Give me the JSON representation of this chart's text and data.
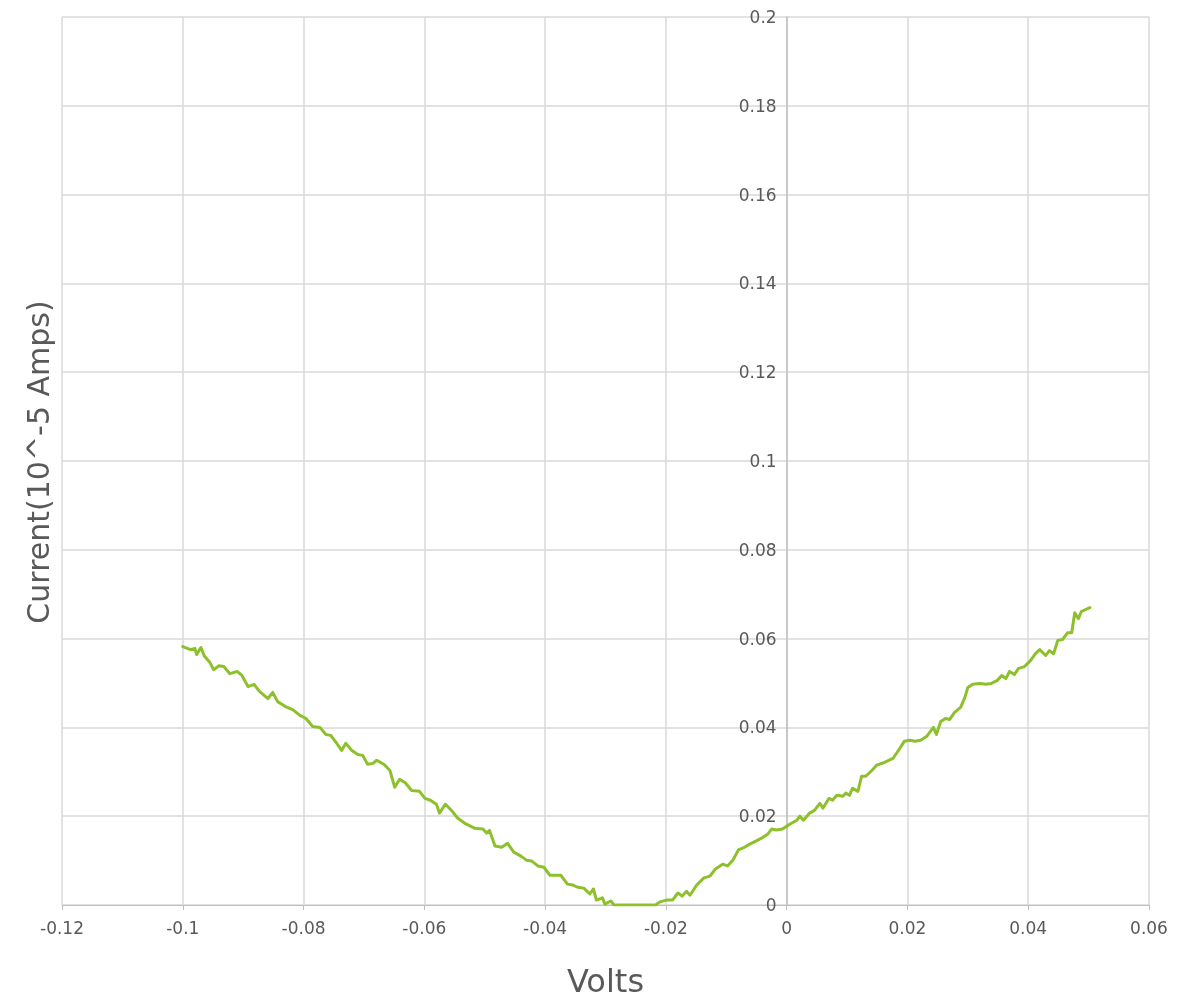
{
  "chart_data": {
    "type": "line",
    "xlabel": "Volts",
    "ylabel": "Current(10^-5 Amps)",
    "xlim": [
      -0.12,
      0.06
    ],
    "xticks": [
      -0.12,
      -0.1,
      -0.08,
      -0.06,
      -0.04,
      -0.02,
      0,
      0.02,
      0.04,
      0.06
    ],
    "ylim": [
      0,
      0.2
    ],
    "yticks": [
      0,
      0.02,
      0.04,
      0.06,
      0.08,
      0.1,
      0.12,
      0.14,
      0.16,
      0.18,
      0.2
    ],
    "grid": true,
    "marker": "none",
    "line_style": "solid",
    "series": [
      {
        "color": "#8dc02b",
        "x": [
          -0.1,
          -0.0987,
          -0.098,
          -0.0977,
          -0.097,
          -0.0964,
          -0.0955,
          -0.0949,
          -0.094,
          -0.0932,
          -0.0922,
          -0.091,
          -0.0902,
          -0.0892,
          -0.0882,
          -0.0873,
          -0.0859,
          -0.0851,
          -0.0843,
          -0.083,
          -0.0818,
          -0.0806,
          -0.0796,
          -0.0785,
          -0.0773,
          -0.0763,
          -0.0755,
          -0.0745,
          -0.0737,
          -0.073,
          -0.072,
          -0.071,
          -0.0702,
          -0.0694,
          -0.0685,
          -0.0679,
          -0.0667,
          -0.0657,
          -0.0649,
          -0.0641,
          -0.0632,
          -0.0621,
          -0.0608,
          -0.0599,
          -0.059,
          -0.058,
          -0.0575,
          -0.0565,
          -0.0555,
          -0.0545,
          -0.0533,
          -0.0517,
          -0.0503,
          -0.0497,
          -0.0492,
          -0.0483,
          -0.0472,
          -0.0462,
          -0.0452,
          -0.044,
          -0.0431,
          -0.0422,
          -0.0412,
          -0.0402,
          -0.0392,
          -0.0382,
          -0.0374,
          -0.0363,
          -0.0354,
          -0.0346,
          -0.0336,
          -0.0326,
          -0.032,
          -0.0315,
          -0.0305,
          -0.0301,
          -0.0291,
          -0.0286,
          -0.027,
          -0.0227,
          -0.0217,
          -0.021,
          -0.0199,
          -0.0189,
          -0.018,
          -0.0173,
          -0.0166,
          -0.016,
          -0.0149,
          -0.0137,
          -0.0127,
          -0.0118,
          -0.0106,
          -0.0098,
          -0.0089,
          -0.008,
          -0.007,
          -0.0061,
          -0.0051,
          -0.0041,
          -0.0031,
          -0.0025,
          -0.0017,
          -0.0007,
          0.0005,
          0.0017,
          0.0022,
          0.0028,
          0.0038,
          0.0046,
          0.0055,
          0.006,
          0.007,
          0.0076,
          0.0083,
          0.0093,
          0.0098,
          0.0104,
          0.0109,
          0.0118,
          0.0124,
          0.0131,
          0.0141,
          0.0149,
          0.0162,
          0.0176,
          0.0185,
          0.0195,
          0.0204,
          0.0212,
          0.0222,
          0.0232,
          0.0238,
          0.0243,
          0.0248,
          0.0255,
          0.0263,
          0.027,
          0.0278,
          0.0288,
          0.0295,
          0.03,
          0.0308,
          0.032,
          0.033,
          0.0339,
          0.0349,
          0.0356,
          0.0363,
          0.0369,
          0.0377,
          0.0384,
          0.0394,
          0.0404,
          0.0412,
          0.0419,
          0.0429,
          0.0435,
          0.0442,
          0.0449,
          0.0457,
          0.0465,
          0.0472,
          0.0477,
          0.0483,
          0.0488,
          0.0502
        ],
        "values": [
          0.0582,
          0.0575,
          0.0578,
          0.0564,
          0.058,
          0.056,
          0.0546,
          0.053,
          0.0539,
          0.0537,
          0.0521,
          0.0526,
          0.0517,
          0.0492,
          0.0497,
          0.0481,
          0.0465,
          0.0479,
          0.0458,
          0.0447,
          0.044,
          0.0427,
          0.042,
          0.0402,
          0.04,
          0.0384,
          0.0382,
          0.0364,
          0.0348,
          0.0364,
          0.0348,
          0.0339,
          0.0337,
          0.0317,
          0.0319,
          0.0326,
          0.0317,
          0.0303,
          0.0265,
          0.0283,
          0.0276,
          0.0258,
          0.0256,
          0.024,
          0.0236,
          0.0227,
          0.0207,
          0.0227,
          0.0213,
          0.0196,
          0.0184,
          0.0173,
          0.0171,
          0.0162,
          0.0168,
          0.0133,
          0.013,
          0.0139,
          0.0119,
          0.011,
          0.0101,
          0.0099,
          0.0088,
          0.0085,
          0.0067,
          0.0067,
          0.0067,
          0.0047,
          0.0045,
          0.004,
          0.0038,
          0.0025,
          0.0036,
          0.0011,
          0.0016,
          0.0002,
          0.0009,
          0.0,
          0.0,
          0.0,
          0.0,
          0.0007,
          0.0011,
          0.0011,
          0.0027,
          0.002,
          0.0031,
          0.0022,
          0.0045,
          0.0061,
          0.0065,
          0.0081,
          0.0092,
          0.0088,
          0.0101,
          0.0124,
          0.013,
          0.0137,
          0.0144,
          0.0151,
          0.016,
          0.0171,
          0.0169,
          0.0171,
          0.0182,
          0.0191,
          0.02,
          0.0191,
          0.0207,
          0.0213,
          0.0229,
          0.0218,
          0.024,
          0.0236,
          0.0247,
          0.0245,
          0.0252,
          0.0247,
          0.0263,
          0.0256,
          0.029,
          0.029,
          0.0303,
          0.0315,
          0.0321,
          0.033,
          0.0348,
          0.0369,
          0.0371,
          0.0369,
          0.0371,
          0.038,
          0.0391,
          0.04,
          0.0384,
          0.0413,
          0.042,
          0.0418,
          0.0434,
          0.0445,
          0.0467,
          0.049,
          0.0497,
          0.0499,
          0.0497,
          0.0499,
          0.0506,
          0.0517,
          0.051,
          0.0526,
          0.0519,
          0.0533,
          0.0537,
          0.0551,
          0.0566,
          0.0575,
          0.0562,
          0.0573,
          0.0566,
          0.0596,
          0.0598,
          0.0613,
          0.0613,
          0.0658,
          0.0645,
          0.0661,
          0.067
        ]
      }
    ]
  }
}
